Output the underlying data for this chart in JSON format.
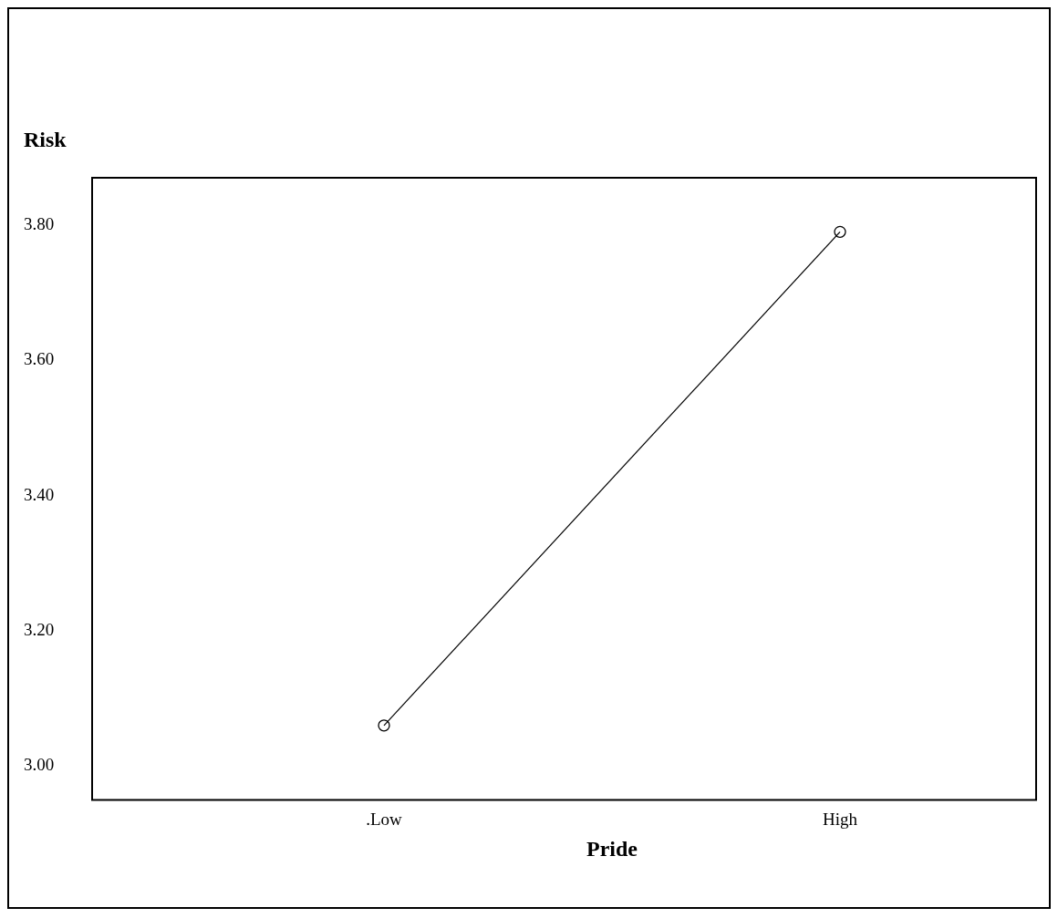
{
  "chart_data": {
    "type": "line",
    "ylabel": "Risk",
    "xlabel": "Pride",
    "categories": [
      ".Low",
      "High"
    ],
    "series": [
      {
        "color": "#000000",
        "values": [
          3.06,
          3.79
        ]
      }
    ],
    "ylim": [
      2.95,
      3.87
    ],
    "yticks": [
      {
        "value": 3,
        "label": "3.00"
      },
      {
        "value": 3.2,
        "label": "3.20"
      },
      {
        "value": 3.4,
        "label": "3.40"
      },
      {
        "value": 3.6,
        "label": "3.60"
      },
      {
        "value": 3.8,
        "label": "3.80"
      }
    ],
    "marker": "circle",
    "line_style": "solid"
  }
}
